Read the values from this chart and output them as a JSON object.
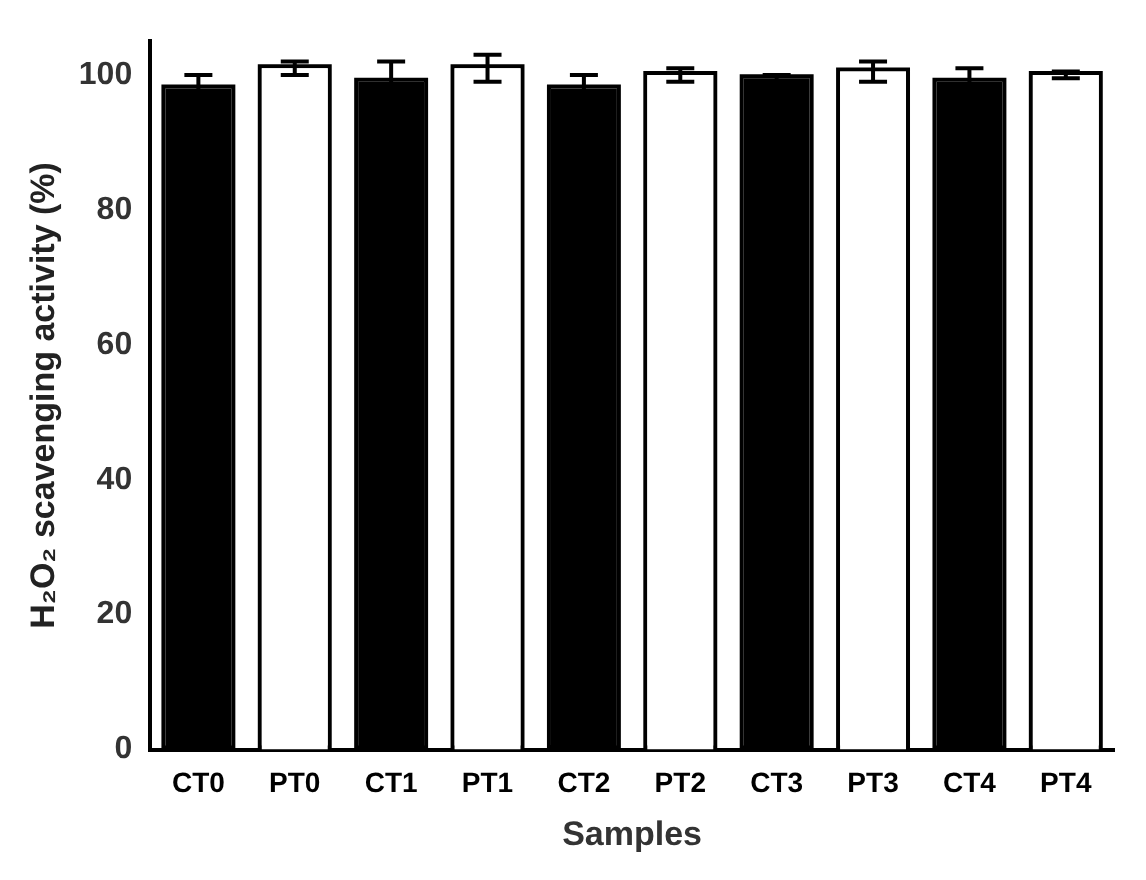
{
  "chart_data": {
    "type": "bar",
    "xlabel": "Samples",
    "ylabel": "H₂O₂ scavenging activity (%)",
    "categories": [
      "CT0",
      "PT0",
      "CT1",
      "PT1",
      "CT2",
      "PT2",
      "CT3",
      "PT3",
      "CT4",
      "PT4"
    ],
    "values": [
      98,
      101,
      99,
      101,
      98,
      100,
      99.5,
      100.5,
      99,
      100
    ],
    "errors": [
      2,
      1,
      3,
      2,
      2,
      1,
      0.5,
      1.5,
      2,
      0.5
    ],
    "colors": [
      "#000000",
      "#ffffff",
      "#000000",
      "#ffffff",
      "#000000",
      "#ffffff",
      "#000000",
      "#ffffff",
      "#000000",
      "#ffffff"
    ],
    "ylim": [
      0,
      105
    ],
    "yticks": [
      0,
      20,
      40,
      60,
      80,
      100
    ],
    "grid": false,
    "legend": false
  }
}
